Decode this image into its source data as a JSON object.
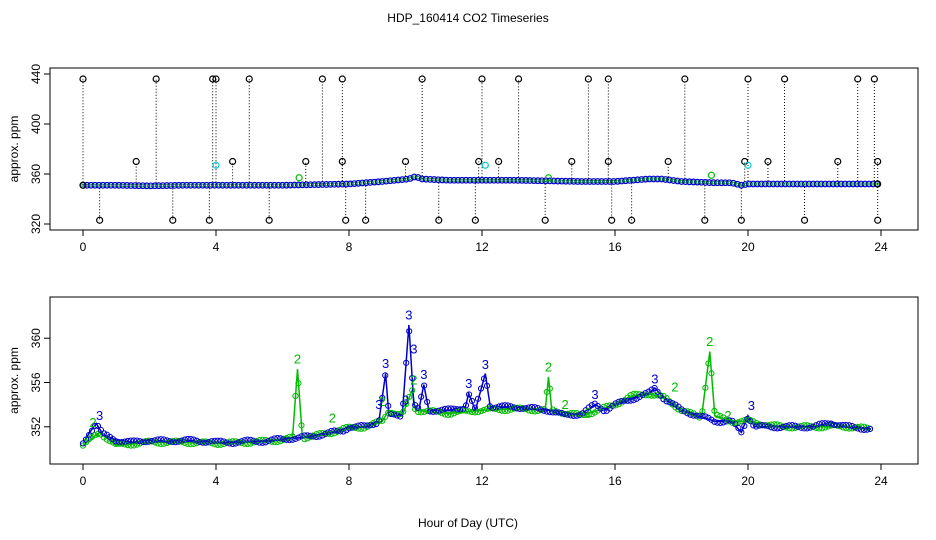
{
  "title": "HDP_160414  CO2 Timeseries",
  "xlabel": "Hour of Day (UTC)",
  "colors": {
    "black": "#000000",
    "blue": "#0000cc",
    "green": "#00bb00",
    "cyan": "#00cccc"
  },
  "chart_data": [
    {
      "type": "scatter",
      "panel": "top",
      "ylabel": "approx. ppm",
      "xlim": [
        0,
        24
      ],
      "ylim": [
        320,
        440
      ],
      "xticks": [
        "0",
        "4",
        "8",
        "12",
        "16",
        "20",
        "24"
      ],
      "yticks": [
        "320",
        "360",
        "400",
        "440"
      ],
      "baseline": [
        [
          0.0,
          351
        ],
        [
          1.0,
          351
        ],
        [
          2.0,
          350.5
        ],
        [
          3.0,
          351
        ],
        [
          4.0,
          351
        ],
        [
          5.0,
          351
        ],
        [
          6.0,
          351
        ],
        [
          7.0,
          351.5
        ],
        [
          8.0,
          352
        ],
        [
          8.5,
          353
        ],
        [
          9.0,
          354
        ],
        [
          9.8,
          356
        ],
        [
          10.0,
          358
        ],
        [
          10.2,
          356
        ],
        [
          11.0,
          355
        ],
        [
          12.0,
          355
        ],
        [
          13.0,
          355
        ],
        [
          14.0,
          354.5
        ],
        [
          15.0,
          354
        ],
        [
          16.0,
          354
        ],
        [
          17.0,
          356
        ],
        [
          17.4,
          356
        ],
        [
          18.0,
          354
        ],
        [
          19.0,
          353
        ],
        [
          19.5,
          353
        ],
        [
          19.8,
          351
        ],
        [
          20.0,
          352
        ],
        [
          21.0,
          352
        ],
        [
          22.0,
          352
        ],
        [
          23.0,
          352
        ],
        [
          23.9,
          352
        ]
      ],
      "black_high": [
        0.0,
        2.2,
        3.9,
        4.0,
        5.0,
        7.2,
        7.8,
        10.2,
        12.0,
        13.1,
        15.2,
        15.8,
        18.1,
        20.0,
        21.1,
        23.3,
        23.8
      ],
      "black_low": [
        0.5,
        2.7,
        3.8,
        5.6,
        7.9,
        8.5,
        10.7,
        11.8,
        13.9,
        15.9,
        16.5,
        18.7,
        19.8,
        21.7,
        23.9
      ],
      "black_mid": [
        [
          1.6,
          370
        ],
        [
          4.5,
          370
        ],
        [
          6.7,
          370
        ],
        [
          9.7,
          370
        ],
        [
          11.9,
          370
        ],
        [
          12.5,
          370
        ],
        [
          14.7,
          370
        ],
        [
          15.8,
          370
        ],
        [
          17.6,
          370
        ],
        [
          19.9,
          370
        ],
        [
          20.6,
          370
        ],
        [
          22.7,
          370
        ],
        [
          23.9,
          370
        ],
        [
          7.8,
          370
        ]
      ],
      "cyan_points": [
        [
          4.0,
          367
        ],
        [
          12.1,
          367
        ],
        [
          20.0,
          367
        ]
      ],
      "green_points": [
        [
          6.5,
          357
        ],
        [
          14.0,
          357
        ],
        [
          18.9,
          359
        ]
      ]
    },
    {
      "type": "line",
      "panel": "bottom",
      "ylabel": "approx. ppm",
      "xlim": [
        0,
        24
      ],
      "ylim": [
        349,
        363
      ],
      "xticks": [
        "0",
        "4",
        "8",
        "12",
        "16",
        "20",
        "24"
      ],
      "yticks": [
        "352",
        "356",
        "360"
      ],
      "blue_series": [
        [
          0.0,
          350.5
        ],
        [
          0.2,
          351.5
        ],
        [
          0.4,
          352.3
        ],
        [
          0.6,
          351.3
        ],
        [
          1.0,
          350.8
        ],
        [
          1.5,
          350.6
        ],
        [
          2.0,
          350.8
        ],
        [
          2.5,
          350.7
        ],
        [
          3.0,
          350.8
        ],
        [
          3.5,
          350.7
        ],
        [
          3.9,
          350.7
        ],
        [
          4.0,
          350.6
        ],
        [
          4.5,
          350.6
        ],
        [
          5.0,
          350.7
        ],
        [
          5.5,
          350.7
        ],
        [
          6.0,
          350.9
        ],
        [
          6.5,
          351.0
        ],
        [
          7.0,
          351.2
        ],
        [
          7.5,
          351.5
        ],
        [
          7.8,
          351.6
        ],
        [
          8.0,
          352.0
        ],
        [
          8.5,
          352.0
        ],
        [
          8.9,
          352.5
        ],
        [
          9.1,
          356.8
        ],
        [
          9.2,
          353.0
        ],
        [
          9.6,
          353.0
        ],
        [
          9.8,
          361.2
        ],
        [
          9.95,
          354.0
        ],
        [
          10.1,
          353.5
        ],
        [
          10.25,
          355.8
        ],
        [
          10.4,
          353.5
        ],
        [
          11.0,
          353.5
        ],
        [
          11.5,
          353.8
        ],
        [
          11.6,
          355.0
        ],
        [
          11.8,
          353.5
        ],
        [
          12.1,
          356.8
        ],
        [
          12.25,
          353.8
        ],
        [
          13.0,
          353.8
        ],
        [
          14.0,
          353.5
        ],
        [
          14.5,
          353.0
        ],
        [
          15.0,
          353.2
        ],
        [
          15.4,
          354.0
        ],
        [
          15.7,
          353.5
        ],
        [
          16.0,
          354.0
        ],
        [
          16.5,
          354.5
        ],
        [
          17.0,
          355.0
        ],
        [
          17.2,
          355.5
        ],
        [
          17.5,
          354.5
        ],
        [
          18.0,
          353.5
        ],
        [
          18.5,
          353.0
        ],
        [
          19.0,
          352.5
        ],
        [
          19.5,
          352.5
        ],
        [
          19.8,
          351.5
        ],
        [
          20.0,
          353.0
        ],
        [
          20.2,
          352.0
        ],
        [
          21.0,
          352.0
        ],
        [
          22.0,
          352.0
        ],
        [
          22.5,
          352.4
        ],
        [
          23.0,
          352.0
        ],
        [
          23.7,
          351.8
        ]
      ],
      "green_series": [
        [
          0.0,
          350.3
        ],
        [
          0.5,
          351.5
        ],
        [
          1.0,
          350.3
        ],
        [
          2.0,
          350.6
        ],
        [
          3.0,
          350.6
        ],
        [
          4.0,
          350.5
        ],
        [
          5.0,
          350.6
        ],
        [
          6.0,
          350.8
        ],
        [
          6.3,
          351.0
        ],
        [
          6.45,
          357.2
        ],
        [
          6.6,
          351.0
        ],
        [
          7.0,
          351.2
        ],
        [
          7.5,
          351.5
        ],
        [
          7.8,
          351.8
        ],
        [
          8.5,
          352.0
        ],
        [
          9.0,
          352.5
        ],
        [
          9.2,
          353.5
        ],
        [
          9.6,
          353.0
        ],
        [
          9.9,
          355.3
        ],
        [
          10.0,
          353.5
        ],
        [
          11.0,
          353.2
        ],
        [
          12.0,
          353.5
        ],
        [
          13.0,
          353.6
        ],
        [
          13.9,
          353.5
        ],
        [
          14.0,
          356.5
        ],
        [
          14.1,
          353.5
        ],
        [
          15.0,
          353.0
        ],
        [
          16.0,
          354.0
        ],
        [
          16.5,
          354.8
        ],
        [
          17.0,
          355.0
        ],
        [
          17.5,
          354.6
        ],
        [
          18.0,
          353.5
        ],
        [
          18.6,
          352.8
        ],
        [
          18.85,
          358.8
        ],
        [
          19.0,
          353.0
        ],
        [
          19.5,
          352.5
        ],
        [
          20.0,
          352.5
        ],
        [
          21.0,
          352.0
        ],
        [
          22.0,
          352.0
        ],
        [
          23.0,
          352.0
        ],
        [
          23.7,
          351.8
        ]
      ],
      "blue_labels": [
        {
          "x": 0.5,
          "y": 352.6,
          "text": "3"
        },
        {
          "x": 9.1,
          "y": 357.3,
          "text": "3"
        },
        {
          "x": 9.8,
          "y": 361.7,
          "text": "3"
        },
        {
          "x": 9.95,
          "y": 358.6,
          "text": "3"
        },
        {
          "x": 10.25,
          "y": 356.3,
          "text": "3"
        },
        {
          "x": 8.9,
          "y": 353.6,
          "text": "3"
        },
        {
          "x": 9.7,
          "y": 354.0,
          "text": "3"
        },
        {
          "x": 11.6,
          "y": 355.5,
          "text": "3"
        },
        {
          "x": 12.1,
          "y": 357.2,
          "text": "3"
        },
        {
          "x": 15.4,
          "y": 354.5,
          "text": "3"
        },
        {
          "x": 17.2,
          "y": 355.9,
          "text": "3"
        },
        {
          "x": 20.1,
          "y": 353.5,
          "text": "3"
        }
      ],
      "green_labels": [
        {
          "x": 6.45,
          "y": 357.7,
          "text": "2"
        },
        {
          "x": 7.5,
          "y": 352.4,
          "text": "2"
        },
        {
          "x": 9.0,
          "y": 353.9,
          "text": "2"
        },
        {
          "x": 9.95,
          "y": 355.8,
          "text": "2"
        },
        {
          "x": 14.0,
          "y": 357.0,
          "text": "2"
        },
        {
          "x": 14.5,
          "y": 353.6,
          "text": "2"
        },
        {
          "x": 15.2,
          "y": 352.9,
          "text": "2"
        },
        {
          "x": 17.8,
          "y": 355.2,
          "text": "2"
        },
        {
          "x": 18.85,
          "y": 359.3,
          "text": "2"
        },
        {
          "x": 19.4,
          "y": 352.6,
          "text": "2"
        },
        {
          "x": 0.3,
          "y": 352.0,
          "text": "2"
        }
      ]
    }
  ]
}
